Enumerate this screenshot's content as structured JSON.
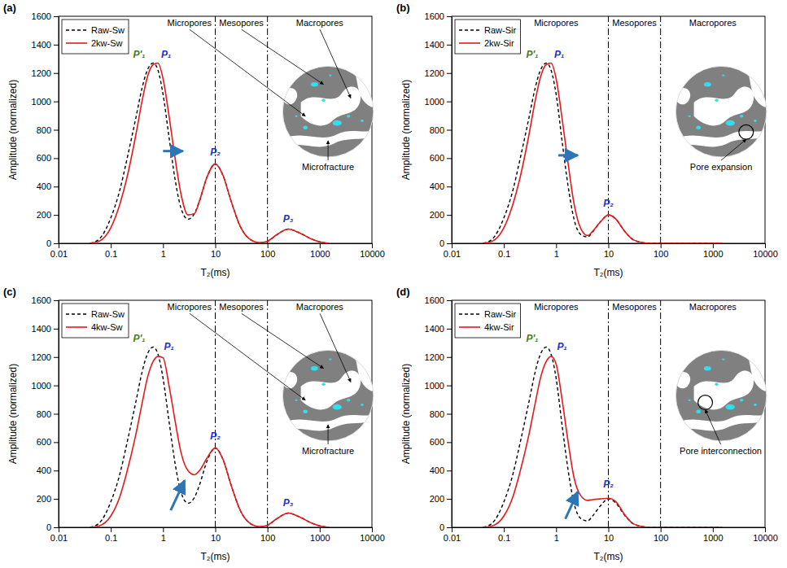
{
  "chart_data": [
    {
      "type": "line",
      "panel_label": "(a)",
      "x_label": "T₂(ms)",
      "y_label": "Amplitude (normalized)",
      "log": "x",
      "legend": "upper left",
      "xlim": [
        0.01,
        10000
      ],
      "xticks": [
        0.01,
        0.1,
        1,
        10,
        100,
        1000,
        10000
      ],
      "ylim": [
        0,
        1600
      ],
      "yticks": [
        0,
        200,
        400,
        600,
        800,
        1000,
        1200,
        1400,
        1600
      ],
      "x": [
        0.04,
        0.06,
        0.1,
        0.15,
        0.2,
        0.3,
        0.4,
        0.5,
        0.65,
        0.8,
        1,
        1.3,
        1.7,
        2.2,
        3,
        4,
        5,
        7,
        10,
        14,
        20,
        30,
        50,
        70,
        100,
        150,
        250,
        400,
        700,
        1000,
        1500
      ],
      "series": [
        {
          "name": "Raw-Sw",
          "color": "#000000",
          "line_style": "dashed",
          "values": [
            0,
            30,
            180,
            380,
            580,
            880,
            1100,
            1220,
            1270,
            1220,
            1050,
            750,
            450,
            250,
            170,
            210,
            300,
            470,
            560,
            480,
            300,
            120,
            20,
            5,
            15,
            60,
            100,
            75,
            30,
            10,
            0
          ]
        },
        {
          "name": "2kw-Sw",
          "color": "#e41a1c",
          "line_style": "solid",
          "values": [
            0,
            15,
            110,
            280,
            450,
            760,
            1010,
            1170,
            1260,
            1270,
            1160,
            900,
            600,
            350,
            200,
            210,
            300,
            470,
            560,
            480,
            300,
            120,
            20,
            5,
            15,
            60,
            100,
            75,
            30,
            10,
            0
          ]
        }
      ],
      "vlines": [
        10,
        100
      ],
      "region_labels": [
        {
          "text": "Micropores",
          "x": 3.2,
          "y": 1530
        },
        {
          "text": "Mesopores",
          "x": 31.6,
          "y": 1530
        },
        {
          "text": "Macropores",
          "x": 1000,
          "y": 1530
        }
      ],
      "peak_labels": [
        {
          "text": "P'₁",
          "x": 0.35,
          "y": 1310,
          "color": "#4a7a1e"
        },
        {
          "text": "P₁",
          "x": 1.15,
          "y": 1310,
          "color": "#2233cc"
        },
        {
          "text": "P₂",
          "x": 10,
          "y": 620,
          "color": "#2233cc"
        },
        {
          "text": "P₃",
          "x": 250,
          "y": 150,
          "color": "#2233cc"
        }
      ],
      "arrows": [
        {
          "x1": 1,
          "y1": 650,
          "x2": 2.4,
          "y2": 650,
          "color": "#2e75b6"
        }
      ],
      "inset": {
        "label": "Microfracture",
        "marker": "arrow"
      }
    },
    {
      "type": "line",
      "panel_label": "(b)",
      "x_label": "T₂(ms)",
      "y_label": "Amplitude (normalized)",
      "log": "x",
      "legend": "upper left",
      "xlim": [
        0.01,
        10000
      ],
      "xticks": [
        0.01,
        0.1,
        1,
        10,
        100,
        1000,
        10000
      ],
      "ylim": [
        0,
        1600
      ],
      "yticks": [
        0,
        200,
        400,
        600,
        800,
        1000,
        1200,
        1400,
        1600
      ],
      "x": [
        0.04,
        0.06,
        0.1,
        0.15,
        0.2,
        0.3,
        0.4,
        0.5,
        0.65,
        0.8,
        1,
        1.3,
        1.7,
        2.2,
        3,
        4,
        5,
        7,
        10,
        14,
        20,
        30,
        50,
        70,
        100,
        150,
        250,
        400,
        700,
        1000,
        1500
      ],
      "series": [
        {
          "name": "Raw-Sir",
          "color": "#000000",
          "line_style": "dashed",
          "values": [
            0,
            30,
            180,
            380,
            580,
            880,
            1100,
            1220,
            1270,
            1220,
            1050,
            720,
            400,
            170,
            60,
            45,
            80,
            150,
            200,
            170,
            90,
            25,
            3,
            0,
            0,
            0,
            0,
            0,
            0,
            0,
            0
          ]
        },
        {
          "name": "2kw-Sir",
          "color": "#e41a1c",
          "line_style": "solid",
          "values": [
            0,
            15,
            110,
            280,
            450,
            760,
            1010,
            1170,
            1260,
            1270,
            1160,
            880,
            560,
            280,
            100,
            55,
            85,
            150,
            200,
            170,
            90,
            25,
            3,
            0,
            0,
            0,
            0,
            0,
            0,
            0,
            0
          ]
        }
      ],
      "vlines": [
        10,
        100
      ],
      "region_labels": [
        {
          "text": "Micropores",
          "x": 1,
          "y": 1530
        },
        {
          "text": "Mesopores",
          "x": 31.6,
          "y": 1530
        },
        {
          "text": "Macropores",
          "x": 1000,
          "y": 1530
        }
      ],
      "peak_labels": [
        {
          "text": "P'₁",
          "x": 0.35,
          "y": 1310,
          "color": "#4a7a1e"
        },
        {
          "text": "P₁",
          "x": 1.15,
          "y": 1310,
          "color": "#2233cc"
        },
        {
          "text": "P₂",
          "x": 10,
          "y": 260,
          "color": "#2233cc"
        }
      ],
      "arrows": [
        {
          "x1": 1.1,
          "y1": 620,
          "x2": 2.6,
          "y2": 620,
          "color": "#2e75b6"
        }
      ],
      "inset": {
        "label": "Pore expansion",
        "marker": "circle"
      }
    },
    {
      "type": "line",
      "panel_label": "(c)",
      "x_label": "T₂(ms)",
      "y_label": "Amplitude (normalized)",
      "log": "x",
      "legend": "upper left",
      "xlim": [
        0.01,
        10000
      ],
      "xticks": [
        0.01,
        0.1,
        1,
        10,
        100,
        1000,
        10000
      ],
      "ylim": [
        0,
        1600
      ],
      "yticks": [
        0,
        200,
        400,
        600,
        800,
        1000,
        1200,
        1400,
        1600
      ],
      "x": [
        0.04,
        0.06,
        0.1,
        0.15,
        0.2,
        0.3,
        0.4,
        0.5,
        0.65,
        0.8,
        1,
        1.3,
        1.7,
        2.2,
        3,
        4,
        5,
        7,
        10,
        14,
        20,
        30,
        50,
        70,
        100,
        150,
        250,
        400,
        700,
        1000,
        1500
      ],
      "series": [
        {
          "name": "Raw-Sw",
          "color": "#000000",
          "line_style": "dashed",
          "values": [
            0,
            30,
            180,
            380,
            580,
            880,
            1100,
            1220,
            1270,
            1220,
            1050,
            750,
            450,
            250,
            170,
            210,
            300,
            470,
            560,
            480,
            300,
            120,
            20,
            5,
            15,
            60,
            100,
            75,
            30,
            10,
            0
          ]
        },
        {
          "name": "4kw-Sw",
          "color": "#e41a1c",
          "line_style": "solid",
          "values": [
            0,
            10,
            80,
            220,
            380,
            650,
            880,
            1050,
            1170,
            1205,
            1195,
            1000,
            750,
            530,
            400,
            370,
            400,
            490,
            560,
            480,
            300,
            120,
            20,
            5,
            15,
            60,
            100,
            75,
            30,
            10,
            0
          ]
        }
      ],
      "vlines": [
        10,
        100
      ],
      "region_labels": [
        {
          "text": "Micropores",
          "x": 3.2,
          "y": 1530
        },
        {
          "text": "Mesopores",
          "x": 31.6,
          "y": 1530
        },
        {
          "text": "Macropores",
          "x": 1000,
          "y": 1530
        }
      ],
      "peak_labels": [
        {
          "text": "P'₁",
          "x": 0.35,
          "y": 1310,
          "color": "#4a7a1e"
        },
        {
          "text": "P₁",
          "x": 1.3,
          "y": 1250,
          "color": "#2233cc"
        },
        {
          "text": "P₂",
          "x": 10,
          "y": 620,
          "color": "#2233cc"
        },
        {
          "text": "P₃",
          "x": 250,
          "y": 150,
          "color": "#2233cc"
        }
      ],
      "arrows": [
        {
          "x1": 1.4,
          "y1": 120,
          "x2": 2.6,
          "y2": 330,
          "color": "#2e75b6"
        }
      ],
      "inset": {
        "label": "Microfracture",
        "marker": "arrow"
      }
    },
    {
      "type": "line",
      "panel_label": "(d)",
      "x_label": "T₂(ms)",
      "y_label": "Amplitude (normalized)",
      "log": "x",
      "legend": "upper left",
      "xlim": [
        0.01,
        10000
      ],
      "xticks": [
        0.01,
        0.1,
        1,
        10,
        100,
        1000,
        10000
      ],
      "ylim": [
        0,
        1600
      ],
      "yticks": [
        0,
        200,
        400,
        600,
        800,
        1000,
        1200,
        1400,
        1600
      ],
      "x": [
        0.04,
        0.06,
        0.1,
        0.15,
        0.2,
        0.3,
        0.4,
        0.5,
        0.65,
        0.8,
        1,
        1.3,
        1.7,
        2.2,
        3,
        4,
        5,
        7,
        10,
        14,
        20,
        30,
        50,
        70,
        100,
        150,
        250,
        400,
        700,
        1000,
        1500
      ],
      "series": [
        {
          "name": "Raw-Sir",
          "color": "#000000",
          "line_style": "dashed",
          "values": [
            0,
            30,
            180,
            380,
            580,
            880,
            1100,
            1220,
            1270,
            1220,
            1050,
            720,
            400,
            170,
            60,
            45,
            80,
            150,
            200,
            170,
            90,
            25,
            3,
            0,
            0,
            0,
            0,
            0,
            0,
            0,
            0
          ]
        },
        {
          "name": "4kw-Sir",
          "color": "#e41a1c",
          "line_style": "solid",
          "values": [
            0,
            10,
            80,
            220,
            380,
            650,
            880,
            1050,
            1170,
            1205,
            1150,
            900,
            600,
            350,
            220,
            190,
            195,
            200,
            205,
            180,
            95,
            25,
            3,
            0,
            0,
            0,
            0,
            0,
            0,
            0,
            0
          ]
        }
      ],
      "vlines": [
        10,
        100
      ],
      "region_labels": [
        {
          "text": "Micropores",
          "x": 1,
          "y": 1530
        },
        {
          "text": "Mesopores",
          "x": 31.6,
          "y": 1530
        },
        {
          "text": "Macropores",
          "x": 1000,
          "y": 1530
        }
      ],
      "peak_labels": [
        {
          "text": "P'₁",
          "x": 0.35,
          "y": 1310,
          "color": "#4a7a1e"
        },
        {
          "text": "P₁",
          "x": 1.3,
          "y": 1250,
          "color": "#2233cc"
        },
        {
          "text": "P₂",
          "x": 10,
          "y": 280,
          "color": "#2233cc"
        }
      ],
      "arrows": [
        {
          "x1": 1.5,
          "y1": 60,
          "x2": 2.6,
          "y2": 250,
          "color": "#2e75b6"
        }
      ],
      "inset": {
        "label": "Pore interconnection",
        "marker": "circle"
      }
    }
  ]
}
